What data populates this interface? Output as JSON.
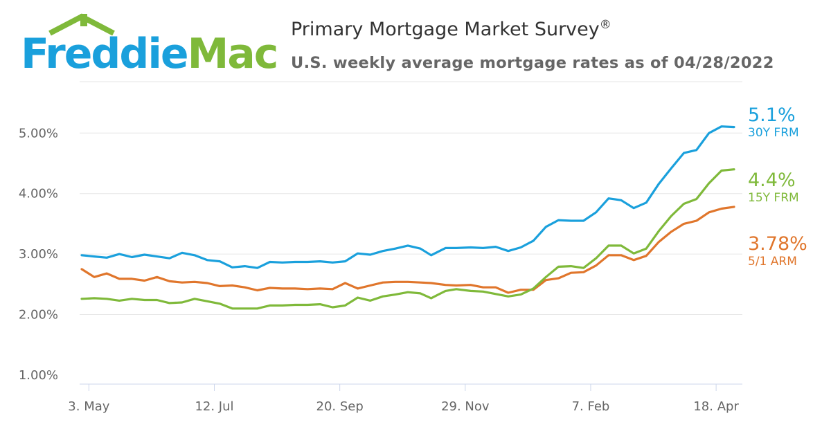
{
  "brand": {
    "logo_left": "Freddie",
    "logo_right": "Mac",
    "blue": "#1aa0dc",
    "green": "#7fb93a"
  },
  "header": {
    "title": "Primary Mortgage Market Survey",
    "title_mark": "®",
    "subtitle": "U.S. weekly average mortgage rates as of 04/28/2022"
  },
  "chart_data": {
    "type": "line",
    "title": "Primary Mortgage Market Survey®",
    "subtitle": "U.S. weekly average mortgage rates as of 04/28/2022",
    "xlabel": "",
    "ylabel": "",
    "x": [
      "2021-04-29",
      "2021-05-06",
      "2021-05-13",
      "2021-05-20",
      "2021-05-27",
      "2021-06-03",
      "2021-06-10",
      "2021-06-17",
      "2021-06-24",
      "2021-07-01",
      "2021-07-08",
      "2021-07-15",
      "2021-07-22",
      "2021-07-29",
      "2021-08-05",
      "2021-08-12",
      "2021-08-19",
      "2021-08-26",
      "2021-09-02",
      "2021-09-09",
      "2021-09-16",
      "2021-09-23",
      "2021-09-30",
      "2021-10-07",
      "2021-10-14",
      "2021-10-21",
      "2021-10-28",
      "2021-11-04",
      "2021-11-10",
      "2021-11-18",
      "2021-11-24",
      "2021-12-02",
      "2021-12-09",
      "2021-12-16",
      "2021-12-23",
      "2021-12-30",
      "2022-01-06",
      "2022-01-13",
      "2022-01-20",
      "2022-01-27",
      "2022-02-03",
      "2022-02-10",
      "2022-02-17",
      "2022-02-24",
      "2022-03-03",
      "2022-03-10",
      "2022-03-17",
      "2022-03-24",
      "2022-03-31",
      "2022-04-07",
      "2022-04-14",
      "2022-04-21",
      "2022-04-28"
    ],
    "x_ticks": [
      "3. May",
      "12. Jul",
      "20. Sep",
      "29. Nov",
      "7. Feb",
      "18. Apr"
    ],
    "x_tick_dates": [
      "2021-05-03",
      "2021-07-12",
      "2021-09-20",
      "2021-11-29",
      "2022-02-07",
      "2022-04-18"
    ],
    "y_ticks": [
      "1.00%",
      "2.00%",
      "3.00%",
      "4.00%",
      "5.00%"
    ],
    "y_tick_values": [
      1,
      2,
      3,
      4,
      5
    ],
    "ylim": [
      0.85,
      5.85
    ],
    "grid": true,
    "legend": "right-end labels",
    "series": [
      {
        "name": "30Y FRM",
        "end_value_label": "5.1%",
        "color": "#1aa0dc",
        "values": [
          2.98,
          2.96,
          2.94,
          3.0,
          2.95,
          2.99,
          2.96,
          2.93,
          3.02,
          2.98,
          2.9,
          2.88,
          2.78,
          2.8,
          2.77,
          2.87,
          2.86,
          2.87,
          2.87,
          2.88,
          2.86,
          2.88,
          3.01,
          2.99,
          3.05,
          3.09,
          3.14,
          3.09,
          2.98,
          3.1,
          3.1,
          3.11,
          3.1,
          3.12,
          3.05,
          3.11,
          3.22,
          3.45,
          3.56,
          3.55,
          3.55,
          3.69,
          3.92,
          3.89,
          3.76,
          3.85,
          4.16,
          4.42,
          4.67,
          4.72,
          5.0,
          5.11,
          5.1
        ]
      },
      {
        "name": "15Y FRM",
        "end_value_label": "4.4%",
        "color": "#7fb93a",
        "values": [
          2.26,
          2.27,
          2.26,
          2.23,
          2.26,
          2.24,
          2.24,
          2.19,
          2.2,
          2.26,
          2.22,
          2.18,
          2.1,
          2.1,
          2.1,
          2.15,
          2.15,
          2.16,
          2.16,
          2.17,
          2.12,
          2.15,
          2.28,
          2.23,
          2.3,
          2.33,
          2.37,
          2.35,
          2.27,
          2.39,
          2.42,
          2.39,
          2.38,
          2.34,
          2.3,
          2.33,
          2.43,
          2.62,
          2.79,
          2.8,
          2.77,
          2.93,
          3.14,
          3.14,
          3.01,
          3.09,
          3.38,
          3.63,
          3.83,
          3.91,
          4.17,
          4.38,
          4.4
        ]
      },
      {
        "name": "5/1 ARM",
        "end_value_label": "3.78%",
        "color": "#e0762c",
        "values": [
          2.75,
          2.62,
          2.68,
          2.59,
          2.59,
          2.56,
          2.62,
          2.55,
          2.53,
          2.54,
          2.52,
          2.47,
          2.48,
          2.45,
          2.4,
          2.44,
          2.43,
          2.43,
          2.42,
          2.43,
          2.42,
          2.52,
          2.43,
          2.48,
          2.53,
          2.54,
          2.54,
          2.53,
          2.52,
          2.49,
          2.48,
          2.49,
          2.45,
          2.45,
          2.36,
          2.41,
          2.41,
          2.57,
          2.6,
          2.69,
          2.7,
          2.81,
          2.98,
          2.98,
          2.9,
          2.97,
          3.2,
          3.37,
          3.5,
          3.55,
          3.69,
          3.75,
          3.78
        ]
      }
    ]
  }
}
